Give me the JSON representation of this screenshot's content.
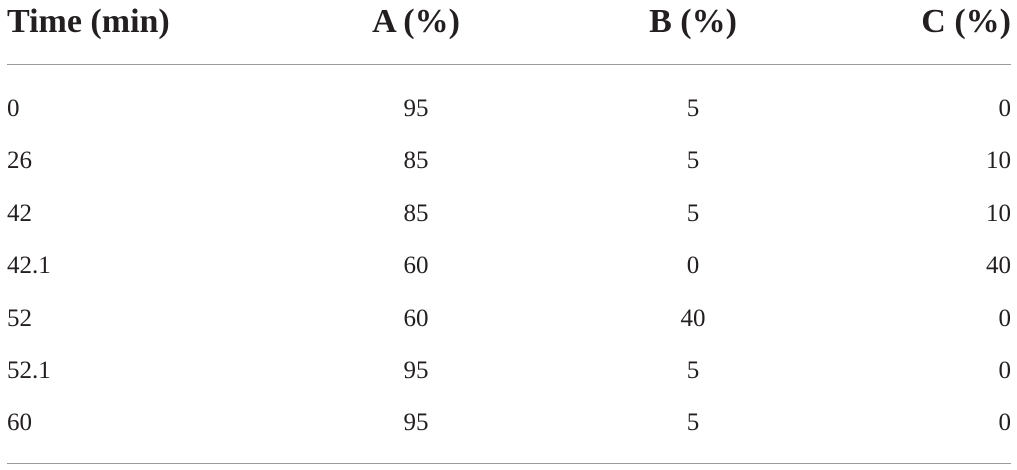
{
  "table": {
    "headers": [
      "Time (min)",
      "A (%)",
      "B (%)",
      "C (%)"
    ],
    "rows": [
      [
        "0",
        "95",
        "5",
        "0"
      ],
      [
        "26",
        "85",
        "5",
        "10"
      ],
      [
        "42",
        "85",
        "5",
        "10"
      ],
      [
        "42.1",
        "60",
        "0",
        "40"
      ],
      [
        "52",
        "60",
        "40",
        "0"
      ],
      [
        "52.1",
        "95",
        "5",
        "0"
      ],
      [
        "60",
        "95",
        "5",
        "0"
      ]
    ]
  }
}
